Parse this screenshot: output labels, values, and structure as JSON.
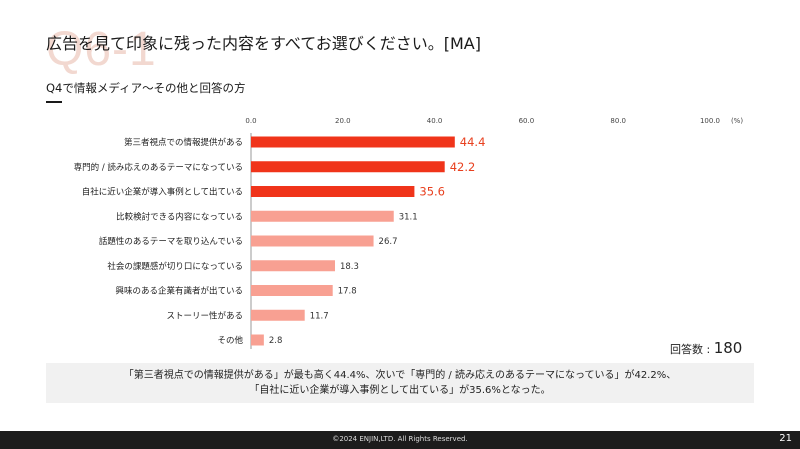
{
  "page": {
    "watermark": "Q6-1",
    "title": "広告を見て印象に残った内容をすべてお選びください。[MA]",
    "subtitle": "Q4で情報メディア〜その他と回答の方",
    "respondents_label": "回答数 : ",
    "respondents_value": "180",
    "summary_line1": "「第三者視点での情報提供がある」が最も高く44.4%、次いで「専門的 / 読み応えのあるテーマになっている」が42.2%、",
    "summary_line2": "「自社に近い企業が導入事例として出ている」が35.6%となった。",
    "copyright": "©2024 ENJIN,LTD. All Rights Reserved.",
    "page_number": "21"
  },
  "chart_data": {
    "type": "bar",
    "orientation": "horizontal",
    "categories": [
      "第三者視点での情報提供がある",
      "専門的 / 読み応えのあるテーマになっている",
      "自社に近い企業が導入事例として出ている",
      "比較検討できる内容になっている",
      "話題性のあるテーマを取り込んでいる",
      "社会の課題感が切り口になっている",
      "興味のある企業有識者が出ている",
      "ストーリー性がある",
      "その他"
    ],
    "values": [
      44.4,
      42.2,
      35.6,
      31.1,
      26.7,
      18.3,
      17.8,
      11.7,
      2.8
    ],
    "value_labels": [
      "44.4",
      "42.2",
      "35.6",
      "31.1",
      "26.7",
      "18.3",
      "17.8",
      "11.7",
      "2.8"
    ],
    "xlim": [
      0,
      100
    ],
    "ticks": [
      "0.0",
      "20.0",
      "40.0",
      "60.0",
      "80.0",
      "100.0"
    ],
    "unit_label": "(%)",
    "highlight_count": 3,
    "colors": {
      "highlight": "#f0341a",
      "normal": "#f8a092",
      "highlight_label": "#e8401f",
      "normal_label": "#333333"
    },
    "grid": false,
    "legend": "none"
  }
}
